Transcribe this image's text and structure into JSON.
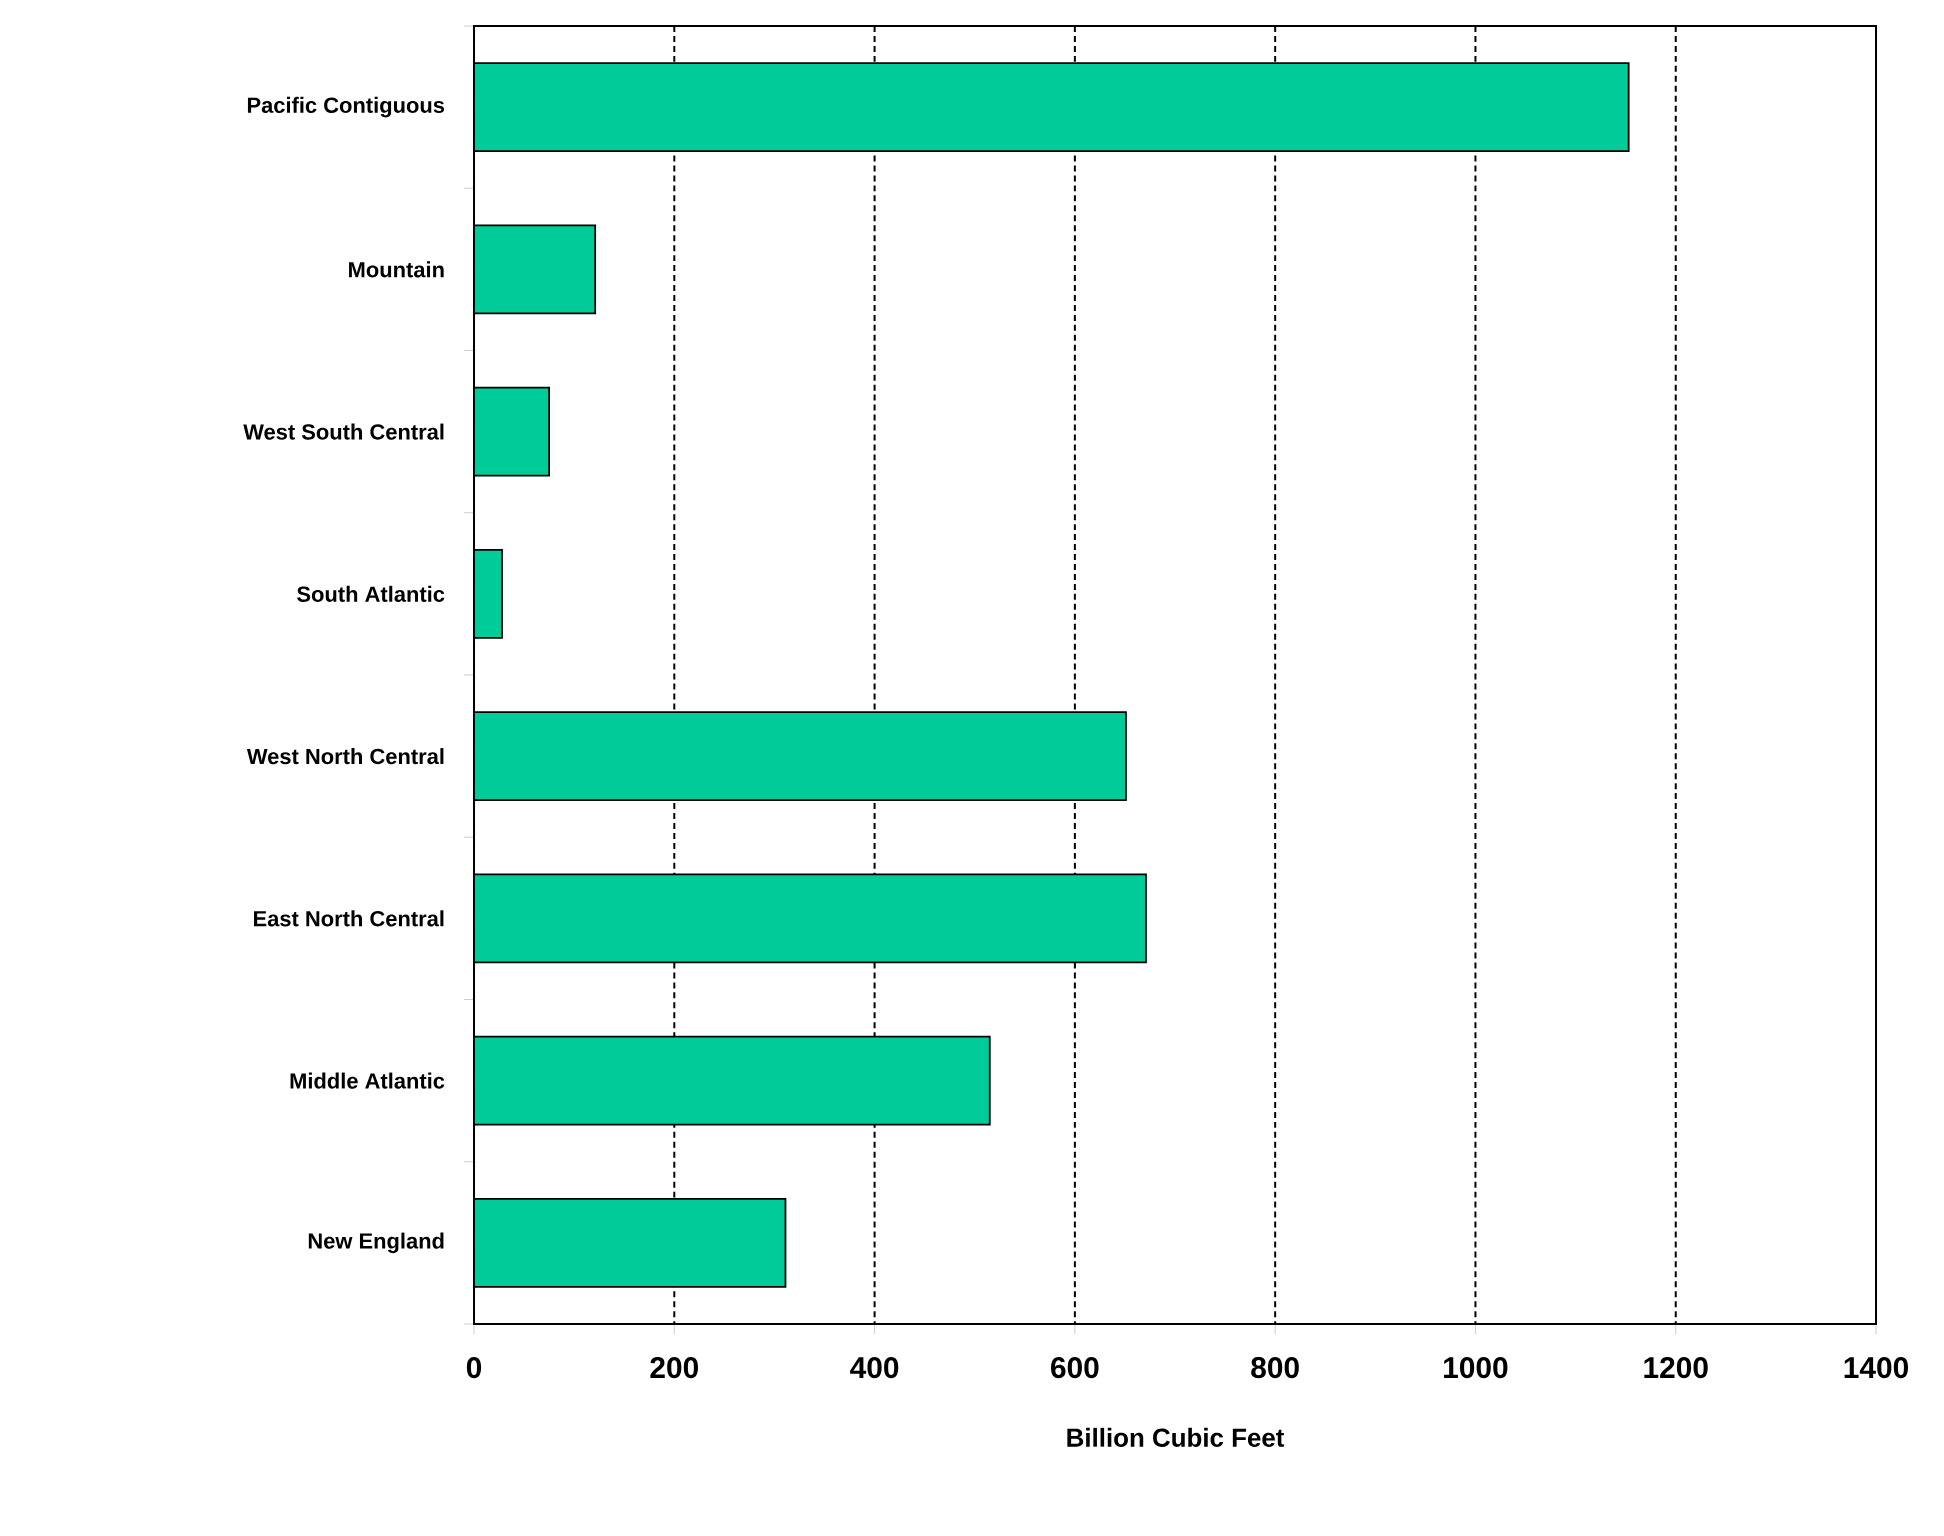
{
  "chart_data": {
    "type": "bar",
    "orientation": "horizontal",
    "xlabel": "Billion Cubic Feet",
    "categories": [
      "Pacific Contiguous",
      "Mountain",
      "West South Central",
      "South Atlantic",
      "West North Central",
      "East North Central",
      "Middle Atlantic",
      "New England"
    ],
    "values": [
      1153,
      121,
      75,
      28,
      651,
      671,
      515,
      311
    ],
    "color": "#00cc99",
    "xlim": [
      0,
      1400
    ],
    "xticks": [
      0,
      200,
      400,
      600,
      800,
      1000,
      1200,
      1400
    ],
    "grid": "x"
  }
}
